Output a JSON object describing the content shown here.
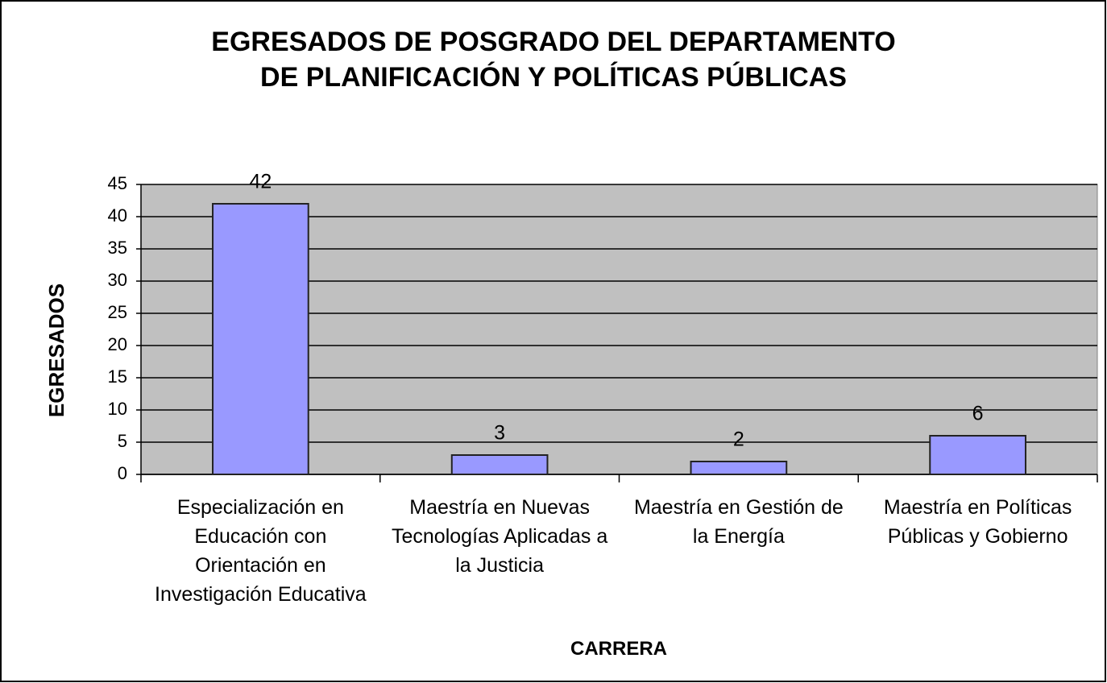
{
  "chart_data": {
    "type": "bar",
    "title": "EGRESADOS DE POSGRADO DEL DEPARTAMENTO DE PLANIFICACIÓN Y POLÍTICAS PÚBLICAS",
    "x_label": "CARRERA",
    "y_label": "EGRESADOS",
    "categories": [
      "Especialización en Educación con Orientación en Investigación Educativa",
      "Maestría en Nuevas Tecnologías Aplicadas a la Justicia",
      "Maestría en Gestión de la Energía",
      "Maestría en Políticas Públicas y Gobierno"
    ],
    "values": [
      42,
      3,
      2,
      6
    ],
    "color": "#9999ff",
    "ylim": [
      0,
      45
    ],
    "yticks": [
      0,
      5,
      10,
      15,
      20,
      25,
      30,
      35,
      40,
      45
    ],
    "grid": true
  }
}
